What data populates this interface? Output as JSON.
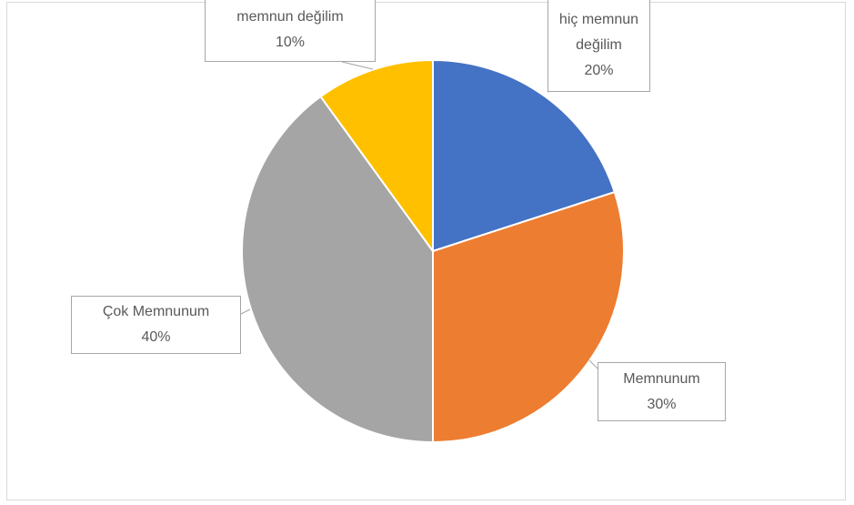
{
  "chart_data": {
    "type": "pie",
    "categories": [
      "hiç memnun değilim",
      "Memnunum",
      "Çok Memnunum",
      "memnun değilim"
    ],
    "values": [
      20,
      30,
      40,
      10
    ],
    "value_labels": [
      "20%",
      "30%",
      "40%",
      "10%"
    ],
    "colors": [
      "#4472c4",
      "#ed7d31",
      "#a5a5a5",
      "#ffc000"
    ]
  }
}
